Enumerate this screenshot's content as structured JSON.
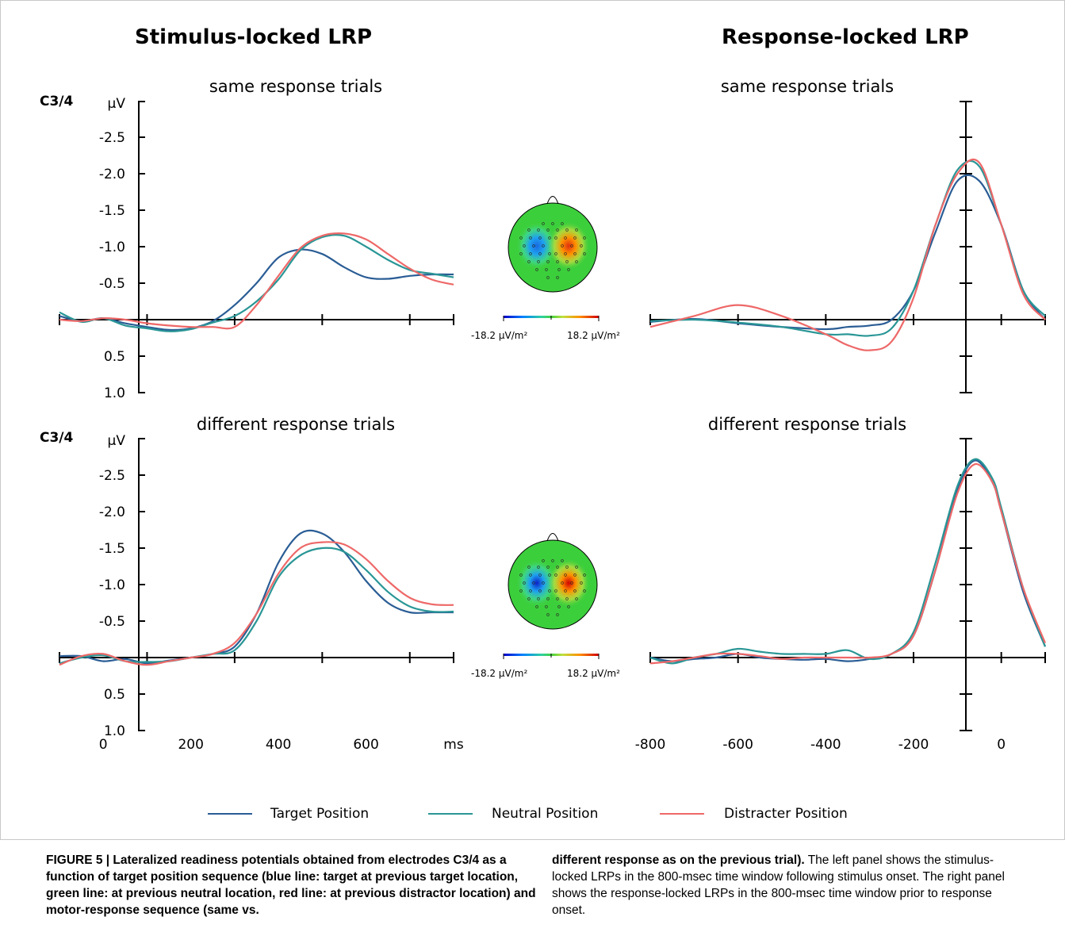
{
  "figure": {
    "left_title": "Stimulus-locked LRP",
    "right_title": "Response-locked LRP"
  },
  "colors": {
    "target": "#2a5d95",
    "neutral": "#2a9696",
    "distracter": "#ee6868"
  },
  "legend": [
    {
      "label": "Target Position",
      "color": "#2a5d95"
    },
    {
      "label": "Neutral Position",
      "color": "#2a9696"
    },
    {
      "label": "Distracter Position",
      "color": "#ee6868"
    }
  ],
  "topomaps": [
    {
      "min_label": "-18.2 µV/m²",
      "max_label": "18.2 µV/m²",
      "intensity": 0.75
    },
    {
      "min_label": "-18.2 µV/m²",
      "max_label": "18.2 µV/m²",
      "intensity": 1.0
    }
  ],
  "chart_data": [
    {
      "type": "line",
      "panel": "stimulus-locked",
      "title": "same response trials",
      "electrode_label": "C3/4",
      "ylabel": "µV",
      "xlabel": "",
      "ylim": [
        1.0,
        -3.0
      ],
      "xlim": [
        -100,
        800
      ],
      "yticks": [
        "-2.5",
        "-2.0",
        "-1.5",
        "-1.0",
        "-0.5",
        "0.5",
        "1.0"
      ],
      "xticks": [],
      "series": [
        {
          "key": "target",
          "x": [
            -100,
            -50,
            0,
            50,
            100,
            150,
            200,
            250,
            300,
            350,
            400,
            450,
            500,
            550,
            600,
            650,
            700,
            750,
            800
          ],
          "y": [
            -0.05,
            0.02,
            -0.02,
            0.05,
            0.1,
            0.14,
            0.12,
            0.02,
            -0.2,
            -0.5,
            -0.85,
            -0.96,
            -0.9,
            -0.72,
            -0.58,
            -0.56,
            -0.6,
            -0.62,
            -0.62
          ]
        },
        {
          "key": "neutral",
          "x": [
            -100,
            -50,
            0,
            50,
            100,
            150,
            200,
            250,
            300,
            350,
            400,
            450,
            500,
            550,
            600,
            650,
            700,
            750,
            800
          ],
          "y": [
            -0.1,
            0.03,
            -0.02,
            0.08,
            0.12,
            0.16,
            0.13,
            0.04,
            -0.05,
            -0.25,
            -0.55,
            -0.95,
            -1.13,
            -1.15,
            -1.0,
            -0.82,
            -0.68,
            -0.63,
            -0.58
          ]
        },
        {
          "key": "distracter",
          "x": [
            -100,
            -50,
            0,
            50,
            100,
            150,
            200,
            250,
            300,
            350,
            400,
            450,
            500,
            550,
            600,
            650,
            700,
            750,
            800
          ],
          "y": [
            0.0,
            0.02,
            -0.02,
            0.0,
            0.05,
            0.08,
            0.1,
            0.1,
            0.1,
            -0.2,
            -0.6,
            -0.98,
            -1.15,
            -1.18,
            -1.1,
            -0.9,
            -0.7,
            -0.55,
            -0.48
          ]
        }
      ]
    },
    {
      "type": "line",
      "panel": "response-locked",
      "title": "same response trials",
      "electrode_label": "",
      "ylabel": "",
      "xlabel": "",
      "ylim": [
        1.0,
        -3.0
      ],
      "xlim": [
        -800,
        100
      ],
      "yticks": [],
      "xticks": [],
      "series": [
        {
          "key": "target",
          "x": [
            -800,
            -700,
            -600,
            -500,
            -400,
            -350,
            -300,
            -250,
            -200,
            -150,
            -100,
            -50,
            0,
            50,
            100
          ],
          "y": [
            0.03,
            -0.01,
            0.05,
            0.1,
            0.13,
            0.1,
            0.08,
            0.0,
            -0.4,
            -1.2,
            -1.9,
            -1.9,
            -1.3,
            -0.4,
            0.0
          ]
        },
        {
          "key": "neutral",
          "x": [
            -800,
            -700,
            -600,
            -500,
            -400,
            -350,
            -300,
            -250,
            -200,
            -150,
            -100,
            -50,
            0,
            50,
            100
          ],
          "y": [
            0.02,
            0.0,
            0.04,
            0.1,
            0.2,
            0.2,
            0.22,
            0.12,
            -0.4,
            -1.3,
            -2.05,
            -2.1,
            -1.3,
            -0.4,
            -0.05
          ]
        },
        {
          "key": "distracter",
          "x": [
            -800,
            -700,
            -600,
            -500,
            -400,
            -350,
            -300,
            -250,
            -200,
            -150,
            -100,
            -50,
            0,
            50,
            100
          ],
          "y": [
            0.1,
            -0.05,
            -0.2,
            -0.05,
            0.2,
            0.35,
            0.42,
            0.3,
            -0.3,
            -1.3,
            -2.0,
            -2.15,
            -1.3,
            -0.35,
            0.0
          ]
        }
      ]
    },
    {
      "type": "line",
      "panel": "stimulus-locked",
      "title": "different response trials",
      "electrode_label": "C3/4",
      "ylabel": "µV",
      "xlabel": "ms",
      "ylim": [
        1.0,
        -3.0
      ],
      "xlim": [
        -100,
        800
      ],
      "yticks": [
        "-2.5",
        "-2.0",
        "-1.5",
        "-1.0",
        "-0.5",
        "0.5",
        "1.0"
      ],
      "xticks": [
        "0",
        "200",
        "400",
        "600"
      ],
      "series": [
        {
          "key": "target",
          "x": [
            -100,
            -50,
            0,
            50,
            100,
            150,
            200,
            250,
            300,
            350,
            400,
            450,
            500,
            550,
            600,
            650,
            700,
            750,
            800
          ],
          "y": [
            -0.02,
            -0.02,
            0.05,
            0.02,
            0.08,
            0.04,
            0.0,
            -0.05,
            -0.15,
            -0.6,
            -1.3,
            -1.7,
            -1.7,
            -1.45,
            -1.05,
            -0.75,
            -0.62,
            -0.62,
            -0.62
          ]
        },
        {
          "key": "neutral",
          "x": [
            -100,
            -50,
            0,
            50,
            100,
            150,
            200,
            250,
            300,
            350,
            400,
            450,
            500,
            550,
            600,
            650,
            700,
            750,
            800
          ],
          "y": [
            0.08,
            0.0,
            -0.03,
            0.05,
            0.06,
            0.05,
            0.0,
            -0.05,
            -0.1,
            -0.5,
            -1.1,
            -1.4,
            -1.5,
            -1.45,
            -1.2,
            -0.9,
            -0.7,
            -0.63,
            -0.63
          ]
        },
        {
          "key": "distracter",
          "x": [
            -100,
            -50,
            0,
            50,
            100,
            150,
            200,
            250,
            300,
            350,
            400,
            450,
            500,
            550,
            600,
            650,
            700,
            750,
            800
          ],
          "y": [
            0.1,
            -0.02,
            -0.05,
            0.05,
            0.1,
            0.05,
            0.0,
            -0.05,
            -0.2,
            -0.6,
            -1.15,
            -1.5,
            -1.58,
            -1.55,
            -1.35,
            -1.05,
            -0.82,
            -0.73,
            -0.72
          ]
        }
      ]
    },
    {
      "type": "line",
      "panel": "response-locked",
      "title": "different response trials",
      "electrode_label": "",
      "ylabel": "",
      "xlabel": "",
      "ylim": [
        1.0,
        -3.0
      ],
      "xlim": [
        -800,
        100
      ],
      "yticks": [],
      "xticks": [
        "-800",
        "-600",
        "-400",
        "-200",
        "0"
      ],
      "series": [
        {
          "key": "target",
          "x": [
            -800,
            -750,
            -700,
            -650,
            -600,
            -550,
            -500,
            -450,
            -400,
            -350,
            -300,
            -250,
            -200,
            -150,
            -100,
            -60,
            -20,
            0,
            50,
            100
          ],
          "y": [
            0.0,
            0.05,
            0.02,
            0.0,
            -0.05,
            0.0,
            0.02,
            0.03,
            0.02,
            0.05,
            0.02,
            -0.05,
            -0.3,
            -1.2,
            -2.3,
            -2.7,
            -2.4,
            -2.0,
            -0.9,
            -0.15
          ]
        },
        {
          "key": "neutral",
          "x": [
            -800,
            -750,
            -700,
            -650,
            -600,
            -550,
            -500,
            -450,
            -400,
            -350,
            -300,
            -250,
            -200,
            -150,
            -100,
            -60,
            -20,
            0,
            50,
            100
          ],
          "y": [
            0.0,
            0.08,
            0.0,
            -0.05,
            -0.12,
            -0.08,
            -0.05,
            -0.05,
            -0.05,
            -0.1,
            0.02,
            -0.05,
            -0.35,
            -1.3,
            -2.35,
            -2.72,
            -2.45,
            -2.05,
            -0.95,
            -0.15
          ]
        },
        {
          "key": "distracter",
          "x": [
            -800,
            -750,
            -700,
            -650,
            -600,
            -550,
            -500,
            -450,
            -400,
            -350,
            -300,
            -250,
            -200,
            -150,
            -100,
            -60,
            -20,
            0,
            50,
            100
          ],
          "y": [
            0.08,
            0.05,
            0.0,
            -0.05,
            -0.05,
            -0.02,
            0.02,
            0.0,
            0.0,
            0.0,
            0.0,
            -0.05,
            -0.3,
            -1.2,
            -2.25,
            -2.65,
            -2.4,
            -2.0,
            -0.95,
            -0.2
          ]
        }
      ]
    }
  ],
  "caption": {
    "bold": "FIGURE 5 | Lateralized readiness potentials obtained from electrodes C3/4 as a function of target position sequence (blue line: target at previous target location, green line: at previous neutral location, red line: at previous distractor location) and motor-response sequence (same vs.",
    "bold_cont": "different response as on the previous trial).",
    "normal": " The left panel shows the stimulus-locked LRPs in the 800-msec time window following stimulus onset. The right panel shows the response-locked LRPs in the 800-msec time window prior to response onset."
  }
}
